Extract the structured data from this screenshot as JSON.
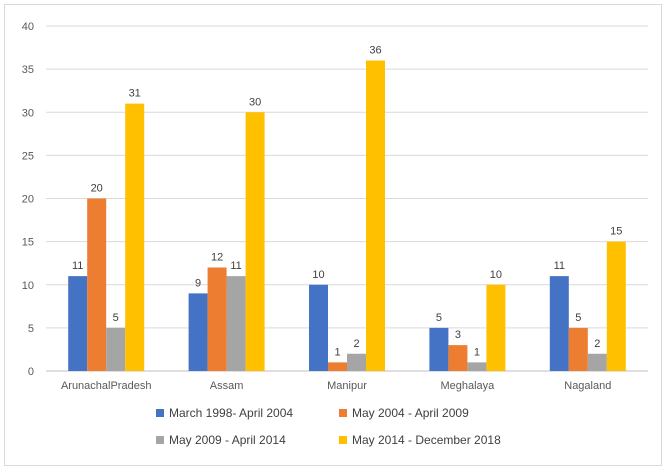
{
  "chart_data": {
    "type": "bar",
    "title": "",
    "xlabel": "",
    "ylabel": "",
    "ylim": [
      0,
      40
    ],
    "y_ticks": [
      0,
      5,
      10,
      15,
      20,
      25,
      30,
      35,
      40
    ],
    "grid": true,
    "legend_position": "bottom",
    "categories": [
      "ArunachalPradesh",
      "Assam",
      "Manipur",
      "Meghalaya",
      "Nagaland"
    ],
    "series": [
      {
        "name": "March 1998- April 2004",
        "color": "#4472c4",
        "values": [
          11,
          9,
          10,
          5,
          11
        ]
      },
      {
        "name": "May 2004 - April 2009",
        "color": "#ed7d31",
        "values": [
          20,
          12,
          1,
          3,
          5
        ]
      },
      {
        "name": "May 2009 - April 2014",
        "color": "#a5a5a5",
        "values": [
          5,
          11,
          2,
          1,
          2
        ]
      },
      {
        "name": "May 2014 - December 2018",
        "color": "#ffc000",
        "values": [
          31,
          30,
          36,
          10,
          15
        ]
      }
    ]
  }
}
